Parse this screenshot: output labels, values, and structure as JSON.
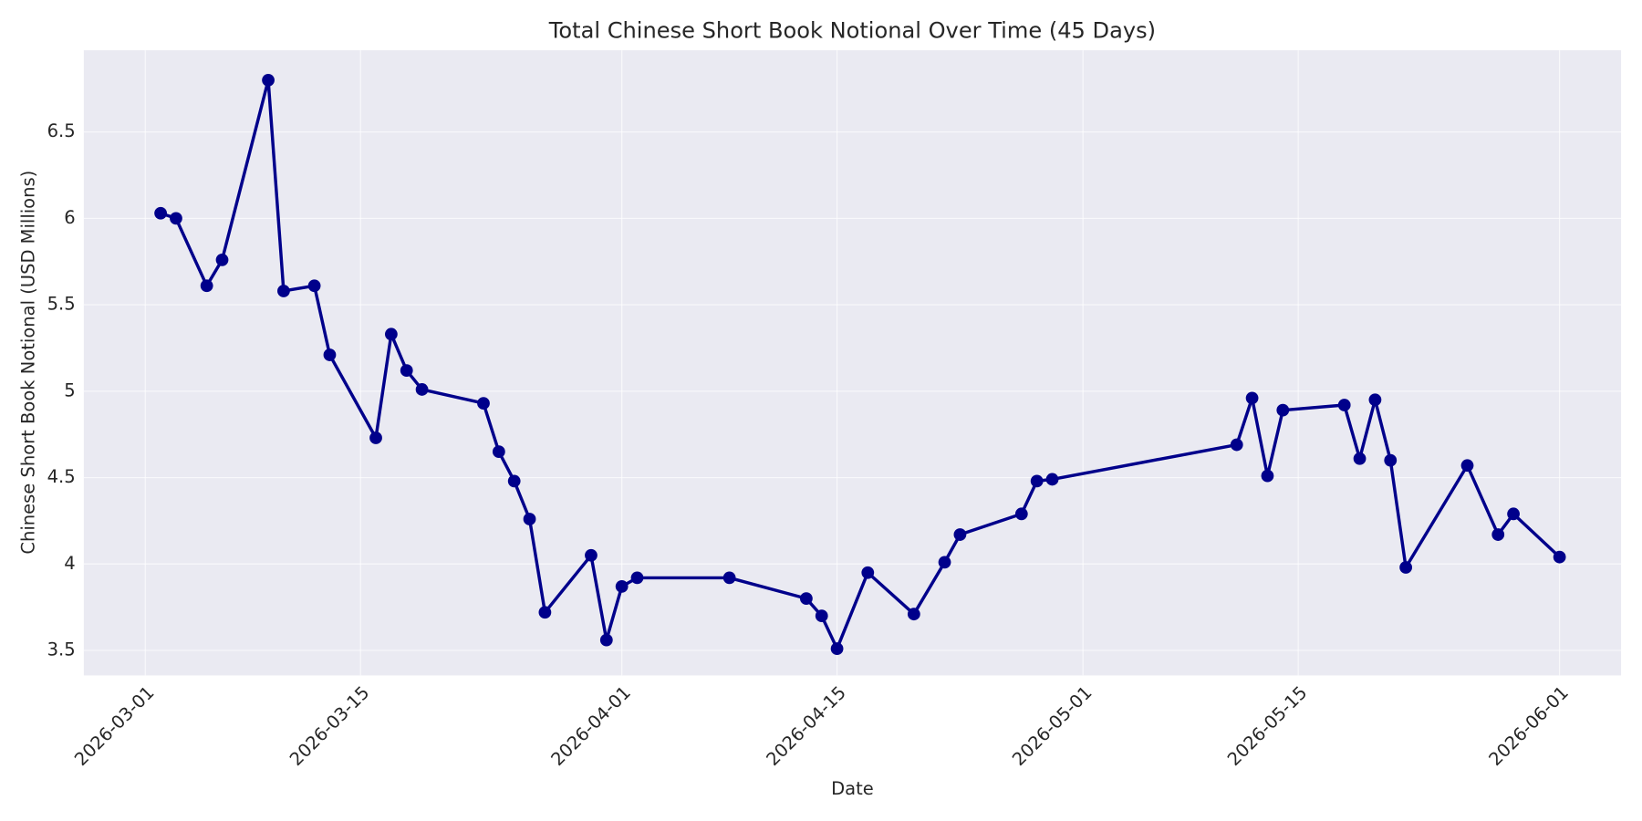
{
  "chart_data": {
    "type": "line",
    "title": "Total Chinese Short Book Notional Over Time (45 Days)",
    "x_label": "Date",
    "y_label": "Chinese Short Book Notional (USD Millions)",
    "x": [
      "2026-03-02",
      "2026-03-03",
      "2026-03-05",
      "2026-03-06",
      "2026-03-09",
      "2026-03-10",
      "2026-03-12",
      "2026-03-13",
      "2026-03-16",
      "2026-03-17",
      "2026-03-18",
      "2026-03-19",
      "2026-03-23",
      "2026-03-24",
      "2026-03-25",
      "2026-03-26",
      "2026-03-27",
      "2026-03-30",
      "2026-03-31",
      "2026-04-01",
      "2026-04-02",
      "2026-04-08",
      "2026-04-13",
      "2026-04-14",
      "2026-04-15",
      "2026-04-17",
      "2026-04-20",
      "2026-04-22",
      "2026-04-23",
      "2026-04-27",
      "2026-04-28",
      "2026-04-29",
      "2026-05-11",
      "2026-05-12",
      "2026-05-13",
      "2026-05-14",
      "2026-05-18",
      "2026-05-19",
      "2026-05-20",
      "2026-05-21",
      "2026-05-22",
      "2026-05-26",
      "2026-05-28",
      "2026-05-29",
      "2026-06-01"
    ],
    "series": [
      {
        "color": "#00008b",
        "values": [
          6.03,
          6.0,
          5.61,
          5.76,
          6.8,
          5.58,
          5.61,
          5.21,
          4.73,
          5.33,
          5.12,
          5.01,
          4.93,
          4.65,
          4.48,
          4.26,
          3.72,
          4.05,
          3.56,
          3.87,
          3.92,
          3.92,
          3.8,
          3.7,
          3.51,
          3.95,
          3.71,
          4.01,
          4.17,
          4.29,
          4.48,
          4.49,
          4.69,
          4.96,
          4.51,
          4.89,
          4.92,
          4.61,
          4.95,
          4.6,
          3.98,
          4.57,
          4.17,
          4.29,
          4.04
        ]
      }
    ],
    "xlim": [
      "2026-02-25",
      "2026-06-05"
    ],
    "xticks": [
      "2026-03-01",
      "2026-03-15",
      "2026-04-01",
      "2026-04-15",
      "2026-05-01",
      "2026-05-15",
      "2026-06-01"
    ],
    "ylim": [
      3.355,
      6.973
    ],
    "yticks": [
      3.5,
      4.0,
      4.5,
      5.0,
      5.5,
      6.0,
      6.5
    ],
    "grid": true
  }
}
